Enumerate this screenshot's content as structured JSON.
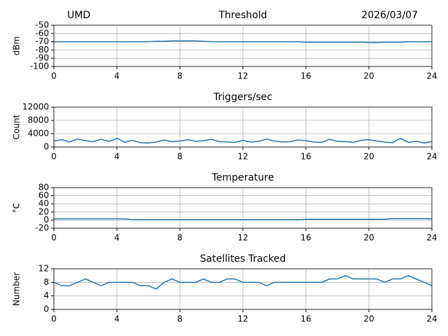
{
  "chart_data": [
    {
      "type": "line",
      "header_left": "UMD",
      "title": "Threshold",
      "header_right": "2026/03/07",
      "ylabel": "dBm",
      "grid": true,
      "xlim": [
        0,
        24
      ],
      "xticks": [
        0,
        4,
        8,
        12,
        16,
        20,
        24
      ],
      "ylim": [
        -100,
        -50
      ],
      "yticks": [
        -100,
        -90,
        -80,
        -70,
        -60,
        -50
      ],
      "x": [
        0,
        0.5,
        1,
        1.5,
        2,
        2.5,
        3,
        3.5,
        4,
        4.5,
        5,
        5.5,
        6,
        6.5,
        7,
        7.5,
        8,
        8.5,
        9,
        9.5,
        10,
        10.5,
        11,
        11.5,
        12,
        12.5,
        13,
        13.5,
        14,
        14.5,
        15,
        15.5,
        16,
        16.5,
        17,
        17.5,
        18,
        18.5,
        19,
        19.5,
        20,
        20.5,
        21,
        21.5,
        22,
        22.5,
        23,
        23.5,
        24
      ],
      "series": [
        {
          "color": "#1f77b4",
          "values": [
            -70,
            -70,
            -70,
            -70,
            -70,
            -70,
            -70,
            -70,
            -70,
            -70,
            -70,
            -70,
            -70,
            -69.5,
            -69.5,
            -69,
            -69,
            -69,
            -69,
            -69.5,
            -70,
            -70,
            -70,
            -70,
            -70,
            -70,
            -70,
            -70,
            -70,
            -70,
            -70,
            -70,
            -70.5,
            -70.5,
            -70.5,
            -70.5,
            -70.5,
            -70.5,
            -70.5,
            -70.5,
            -71,
            -71,
            -70.5,
            -70.5,
            -70.5,
            -70,
            -70,
            -70,
            -70
          ]
        }
      ]
    },
    {
      "type": "line",
      "title": "Triggers/sec",
      "ylabel": "Count",
      "grid": true,
      "xlim": [
        0,
        24
      ],
      "xticks": [
        0,
        4,
        8,
        12,
        16,
        20,
        24
      ],
      "ylim": [
        0,
        12000
      ],
      "yticks": [
        0,
        4000,
        8000,
        12000
      ],
      "x": [
        0,
        0.5,
        1,
        1.5,
        2,
        2.5,
        3,
        3.5,
        4,
        4.5,
        5,
        5.5,
        6,
        6.5,
        7,
        7.5,
        8,
        8.5,
        9,
        9.5,
        10,
        10.5,
        11,
        11.5,
        12,
        12.5,
        13,
        13.5,
        14,
        14.5,
        15,
        15.5,
        16,
        16.5,
        17,
        17.5,
        18,
        18.5,
        19,
        19.5,
        20,
        20.5,
        21,
        21.5,
        22,
        22.5,
        23,
        23.5,
        24
      ],
      "series": [
        {
          "color": "#1f77b4",
          "values": [
            1800,
            2200,
            1500,
            2400,
            1900,
            1600,
            2300,
            1700,
            2600,
            1400,
            2000,
            1300,
            1200,
            1500,
            2100,
            1600,
            1800,
            2200,
            1700,
            1900,
            2300,
            1600,
            1500,
            1400,
            2000,
            1500,
            1700,
            2400,
            1800,
            1500,
            1600,
            2100,
            1900,
            1500,
            1400,
            2300,
            1700,
            1600,
            1400,
            2000,
            2200,
            1800,
            1500,
            1300,
            2600,
            1400,
            1700,
            1200,
            1600
          ]
        }
      ]
    },
    {
      "type": "line",
      "title": "Temperature",
      "ylabel": "°C",
      "grid": true,
      "xlim": [
        0,
        24
      ],
      "xticks": [
        0,
        4,
        8,
        12,
        16,
        20,
        24
      ],
      "ylim": [
        -20,
        80
      ],
      "yticks": [
        -20,
        0,
        20,
        40,
        60,
        80
      ],
      "x": [
        0,
        0.5,
        1,
        1.5,
        2,
        2.5,
        3,
        3.5,
        4,
        4.5,
        5,
        5.5,
        6,
        6.5,
        7,
        7.5,
        8,
        8.5,
        9,
        9.5,
        10,
        10.5,
        11,
        11.5,
        12,
        12.5,
        13,
        13.5,
        14,
        14.5,
        15,
        15.5,
        16,
        16.5,
        17,
        17.5,
        18,
        18.5,
        19,
        19.5,
        20,
        20.5,
        21,
        21.5,
        22,
        22.5,
        23,
        23.5,
        24
      ],
      "series": [
        {
          "color": "#1f77b4",
          "values": [
            3,
            3,
            3,
            3,
            3,
            3,
            3,
            3,
            3,
            3,
            1,
            1,
            1,
            1,
            1,
            1,
            1,
            1,
            1,
            1,
            1,
            1,
            1,
            1,
            1,
            1,
            1,
            1,
            1,
            1,
            1,
            1,
            2,
            2,
            2,
            2,
            2,
            2,
            2,
            2,
            2,
            2,
            2,
            3.5,
            3.5,
            3.5,
            3.5,
            3.5,
            3
          ]
        }
      ]
    },
    {
      "type": "line",
      "title": "Satellites Tracked",
      "ylabel": "Number",
      "grid": true,
      "xlim": [
        0,
        24
      ],
      "xticks": [
        0,
        4,
        8,
        12,
        16,
        20,
        24
      ],
      "ylim": [
        0,
        12
      ],
      "yticks": [
        0,
        4,
        8,
        12
      ],
      "x": [
        0,
        0.5,
        1,
        1.5,
        2,
        2.5,
        3,
        3.5,
        4,
        4.5,
        5,
        5.5,
        6,
        6.5,
        7,
        7.5,
        8,
        8.5,
        9,
        9.5,
        10,
        10.5,
        11,
        11.5,
        12,
        12.5,
        13,
        13.5,
        14,
        14.5,
        15,
        15.5,
        16,
        16.5,
        17,
        17.5,
        18,
        18.5,
        19,
        19.5,
        20,
        20.5,
        21,
        21.5,
        22,
        22.5,
        23,
        23.5,
        24
      ],
      "series": [
        {
          "color": "#1f77b4",
          "values": [
            8,
            7,
            7,
            8,
            9,
            8,
            7,
            8,
            8,
            8,
            8,
            7,
            7,
            6,
            8,
            9,
            8,
            8,
            8,
            9,
            8,
            8,
            9,
            9,
            8,
            8,
            8,
            7,
            8,
            8,
            8,
            8,
            8,
            8,
            8,
            9,
            9,
            10,
            9,
            9,
            9,
            9,
            8,
            9,
            9,
            10,
            9,
            8,
            7
          ]
        }
      ]
    }
  ]
}
